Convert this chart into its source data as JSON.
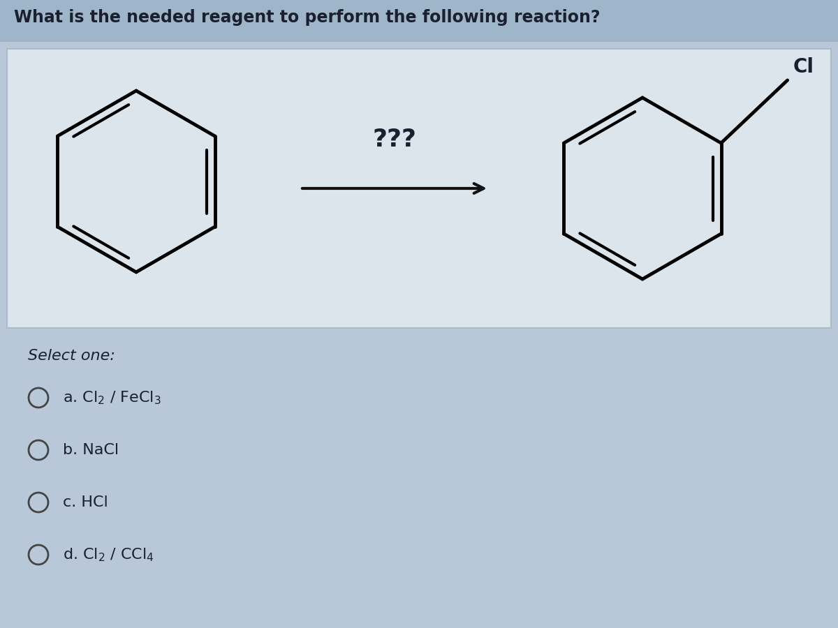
{
  "title": "What is the needed reagent to perform the following reaction?",
  "reagent_label": "???",
  "bg_color_main": "#b8c8d8",
  "bg_color_title_bar": "#a8bdd0",
  "bg_color_box": "#dde4ea",
  "bg_color_lower": "#b0c0d0",
  "select_one_text": "Select one:",
  "text_color": "#1a2030",
  "arrow_color": "#111111",
  "circle_color": "#444444",
  "option_texts": [
    "a. Cl$_2$ / FeCl$_3$",
    "b. NaCl",
    "c. HCl",
    "d. Cl$_2$ / CCl$_4$"
  ]
}
